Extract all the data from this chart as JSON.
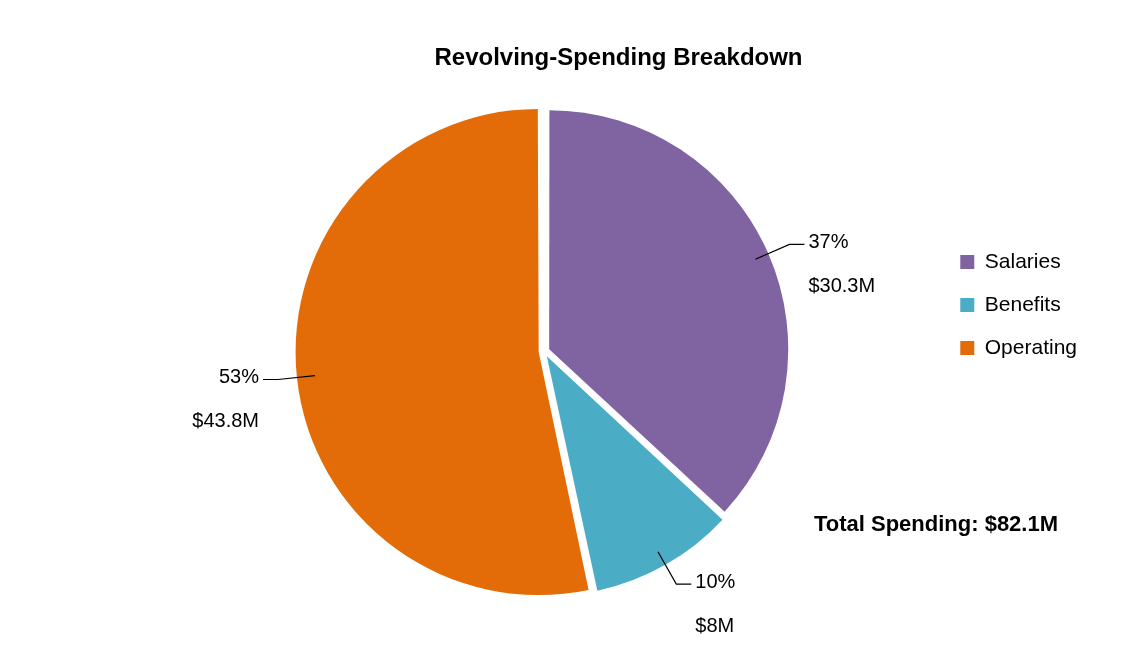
{
  "chart_data": {
    "type": "pie",
    "title": "Revolving-Spending Breakdown",
    "categories": [
      "Salaries",
      "Benefits",
      "Operating"
    ],
    "values": [
      30.3,
      8,
      43.8
    ],
    "colors": [
      "#8064a2",
      "#4bacc6",
      "#e36c09"
    ],
    "value_labels": [
      "$30.3M",
      "$8M",
      "$43.8M"
    ],
    "legend": "right",
    "annotations": [
      {
        "text": "37%",
        "x": "Salaries"
      },
      {
        "text": "10%",
        "x": "Benefits"
      },
      {
        "text": "53%",
        "x": "Operating"
      },
      "Total Spending: $82.1M"
    ]
  }
}
